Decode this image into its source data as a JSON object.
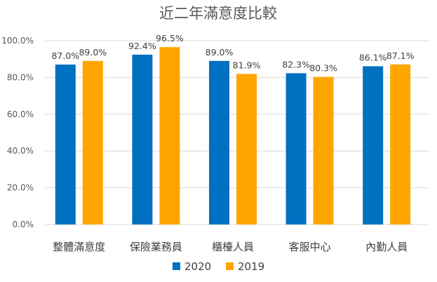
{
  "chart_data": {
    "type": "bar",
    "title": "近二年滿意度比較",
    "categories": [
      "整體滿意度",
      "保險業務員",
      "櫃檯人員",
      "客服中心",
      "內勤人員"
    ],
    "series": [
      {
        "name": "2020",
        "color": "#0070c0",
        "values": [
          87.0,
          92.4,
          89.0,
          82.3,
          86.1
        ],
        "labels": [
          "87.0%",
          "92.4%",
          "89.0%",
          "82.3%",
          "86.1%"
        ]
      },
      {
        "name": "2019",
        "color": "#ffa500",
        "values": [
          89.0,
          96.5,
          81.9,
          80.3,
          87.1
        ],
        "labels": [
          "89.0%",
          "96.5%",
          "81.9%",
          "80.3%",
          "87.1%"
        ]
      }
    ],
    "ylim": [
      0,
      100
    ],
    "yticks": [
      0,
      20,
      40,
      60,
      80,
      100
    ],
    "ytick_labels": [
      "0.0%",
      "20.0%",
      "40.0%",
      "60.0%",
      "80.0%",
      "100.0%"
    ],
    "grid": true,
    "legend_position": "bottom"
  }
}
